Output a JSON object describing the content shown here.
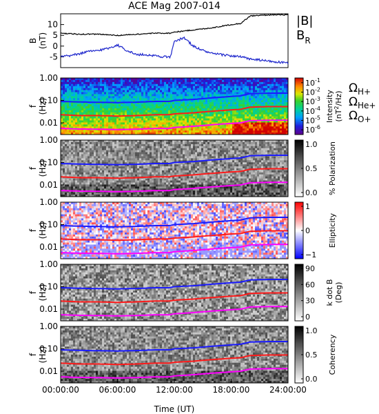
{
  "title": "ACE Mag 2007-014",
  "colors": {
    "field_magnitude": "#000000",
    "field_radial": "#1c25cc",
    "h_plus": "#1a1aff",
    "he_plus": "#ff1a1a",
    "o_plus": "#ff00ff"
  },
  "chart_data": [
    {
      "type": "line",
      "panel": "magnetic-field",
      "ylabel": "B",
      "yunit": "(nT)",
      "yticks": [
        "10",
        "5",
        "0",
        "-5"
      ],
      "ylim": [
        -10,
        15
      ],
      "series": [
        {
          "name": "|B|",
          "x_hours": [
            0,
            2,
            4,
            6,
            8,
            10,
            11.5,
            12,
            14,
            16,
            18,
            19,
            20,
            22,
            24
          ],
          "values": [
            6,
            5.5,
            5.5,
            5,
            5.5,
            6,
            6,
            6.5,
            7.5,
            8.5,
            10,
            10.5,
            14,
            14.5,
            14.5
          ]
        },
        {
          "name": "B_R",
          "x_hours": [
            0,
            1,
            2,
            3,
            4,
            5,
            6,
            7,
            8,
            9,
            10,
            11,
            11.6,
            12,
            13,
            14,
            15,
            16,
            17,
            18,
            19,
            20,
            21,
            22,
            23,
            24
          ],
          "values": [
            -5,
            -4.5,
            -3.5,
            -2.5,
            -2,
            -1,
            0.5,
            -2,
            -4,
            -4,
            -4.5,
            -5,
            -5,
            2,
            4,
            0,
            -2,
            -3.5,
            -4,
            -4.5,
            -5,
            -6,
            -6.5,
            -7,
            -7.5,
            -8
          ]
        }
      ],
      "series_legend": {
        "magnitude": "|B|",
        "radial_base": "B",
        "radial_sub": "R"
      }
    },
    {
      "type": "heatmap",
      "panel": "intensity",
      "ylabel": "f",
      "yunit": "(Hz)",
      "yticks": [
        "1.00",
        "0.10",
        "0.01"
      ],
      "ylim_hz": [
        0.003,
        1.0
      ],
      "yscale": "log",
      "colorbar_label": "Intensity",
      "colorbar_unit": "(nT",
      "colorbar_unit_sup": "2",
      "colorbar_unit_end": "/Hz)",
      "colorbar_ticks": [
        {
          "base": "10",
          "exp": "-1"
        },
        {
          "base": "10",
          "exp": "-2"
        },
        {
          "base": "10",
          "exp": "-3"
        },
        {
          "base": "10",
          "exp": "-4"
        },
        {
          "base": "10",
          "exp": "-5"
        },
        {
          "base": "10",
          "exp": "-6"
        }
      ],
      "colorbar_range_log10": [
        -6.5,
        -0.5
      ],
      "colormap": "rainbow"
    },
    {
      "type": "heatmap",
      "panel": "polarization",
      "ylabel": "f",
      "yunit": "(Hz)",
      "yticks": [
        "1.00",
        "0.10",
        "0.01"
      ],
      "colorbar_label": "% Polarization",
      "colorbar_ticks": [
        "1.0",
        "0.5",
        "0.0"
      ],
      "colorbar_range": [
        0,
        1
      ],
      "colormap": "gray"
    },
    {
      "type": "heatmap",
      "panel": "ellipticity",
      "ylabel": "f",
      "yunit": "(Hz)",
      "yticks": [
        "1.00",
        "0.10",
        "0.01"
      ],
      "colorbar_label": "Ellipticity",
      "colorbar_ticks": [
        "1",
        "0",
        "−1"
      ],
      "colorbar_range": [
        -1,
        1
      ],
      "colormap": "blue-white-red"
    },
    {
      "type": "heatmap",
      "panel": "k-dot-b",
      "ylabel": "f",
      "yunit": "(Hz)",
      "yticks": [
        "1.00",
        "0.10",
        "0.01"
      ],
      "colorbar_label": "k dot B",
      "colorbar_unit": "(Deg)",
      "colorbar_ticks": [
        "90",
        "60",
        "30",
        "0"
      ],
      "colorbar_range": [
        0,
        90
      ],
      "colormap": "gray"
    },
    {
      "type": "heatmap",
      "panel": "coherency",
      "ylabel": "f",
      "yunit": "(Hz)",
      "yticks": [
        "1.00",
        "0.10",
        "0.01"
      ],
      "colorbar_label": "Coherency",
      "colorbar_ticks": [
        "1.0",
        "0.5",
        "0.0"
      ],
      "colorbar_range": [
        0,
        1
      ],
      "colormap": "gray"
    }
  ],
  "gyrofrequency_lines": {
    "x_hours": [
      0,
      2,
      4,
      6,
      8,
      10,
      11.5,
      12,
      14,
      16,
      18,
      19,
      20,
      22,
      24
    ],
    "h_plus_hz": [
      0.09,
      0.085,
      0.082,
      0.08,
      0.083,
      0.09,
      0.09,
      0.1,
      0.11,
      0.13,
      0.15,
      0.16,
      0.2,
      0.21,
      0.21
    ],
    "he_plus_hz": [
      0.023,
      0.021,
      0.021,
      0.02,
      0.021,
      0.023,
      0.023,
      0.025,
      0.028,
      0.033,
      0.038,
      0.04,
      0.05,
      0.053,
      0.053
    ],
    "o_plus_hz": [
      0.0056,
      0.0053,
      0.0052,
      0.005,
      0.0052,
      0.0056,
      0.0056,
      0.0062,
      0.007,
      0.0082,
      0.0094,
      0.01,
      0.0125,
      0.013,
      0.013
    ]
  },
  "gyro_legend": [
    {
      "base": "Ω",
      "sub": "H+"
    },
    {
      "base": "Ω",
      "sub": "He+"
    },
    {
      "base": "Ω",
      "sub": "O+"
    }
  ],
  "time_axis": {
    "ticks": [
      "00:00:00",
      "06:00:00",
      "12:00:00",
      "18:00:00",
      "24:00:00"
    ],
    "tick_hours": [
      0,
      6,
      12,
      18,
      24
    ],
    "xlabel": "Time (UT)",
    "range_hours": [
      0,
      24
    ]
  }
}
